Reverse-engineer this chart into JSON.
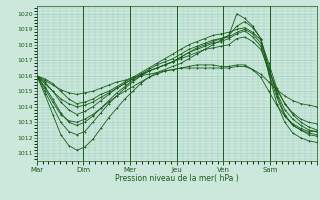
{
  "background_color": "#cce8dd",
  "grid_color": "#99ccbb",
  "line_color": "#1a5c1a",
  "ylabel": "Pression niveau de la mer( hPa )",
  "xlabels": [
    "Mar",
    "Dim",
    "Mer",
    "Jeu",
    "Ven",
    "Sam"
  ],
  "ylim": [
    1010.5,
    1020.5
  ],
  "yticks": [
    1011,
    1012,
    1013,
    1014,
    1015,
    1016,
    1017,
    1018,
    1019,
    1020
  ],
  "num_days": 6,
  "n_points": 36,
  "series": [
    [
      1016.0,
      1015.8,
      1015.5,
      1015.0,
      1014.5,
      1014.2,
      1014.3,
      1014.5,
      1014.8,
      1015.0,
      1015.3,
      1015.6,
      1015.9,
      1016.2,
      1016.5,
      1016.8,
      1017.1,
      1017.4,
      1017.7,
      1018.0,
      1018.2,
      1018.4,
      1018.6,
      1018.7,
      1018.8,
      1019.0,
      1019.1,
      1018.8,
      1018.3,
      1016.8,
      1015.2,
      1014.2,
      1013.5,
      1013.0,
      1012.7,
      1012.5
    ],
    [
      1016.0,
      1015.6,
      1015.0,
      1014.3,
      1013.8,
      1013.5,
      1013.7,
      1014.0,
      1014.4,
      1014.8,
      1015.2,
      1015.5,
      1015.8,
      1016.1,
      1016.4,
      1016.7,
      1016.9,
      1017.1,
      1017.4,
      1017.7,
      1017.9,
      1018.1,
      1018.3,
      1018.4,
      1018.5,
      1018.8,
      1019.0,
      1018.7,
      1018.1,
      1016.5,
      1014.9,
      1013.8,
      1013.2,
      1012.8,
      1012.5,
      1012.4
    ],
    [
      1016.0,
      1015.3,
      1014.5,
      1013.6,
      1013.0,
      1012.8,
      1013.0,
      1013.4,
      1013.9,
      1014.4,
      1014.9,
      1015.3,
      1015.7,
      1016.0,
      1016.3,
      1016.5,
      1016.7,
      1016.9,
      1017.2,
      1017.5,
      1017.7,
      1017.9,
      1018.1,
      1018.2,
      1018.4,
      1018.7,
      1018.9,
      1018.5,
      1017.9,
      1016.2,
      1014.6,
      1013.4,
      1012.8,
      1012.5,
      1012.3,
      1012.2
    ],
    [
      1016.0,
      1015.0,
      1014.0,
      1013.0,
      1012.4,
      1012.2,
      1012.4,
      1013.0,
      1013.6,
      1014.2,
      1014.7,
      1015.2,
      1015.6,
      1016.0,
      1016.3,
      1016.5,
      1016.7,
      1016.9,
      1017.2,
      1017.5,
      1017.8,
      1018.0,
      1018.2,
      1018.4,
      1018.6,
      1019.2,
      1019.5,
      1019.1,
      1018.4,
      1016.5,
      1014.8,
      1013.5,
      1012.8,
      1012.5,
      1012.2,
      1012.1
    ],
    [
      1016.0,
      1015.5,
      1015.0,
      1014.5,
      1014.2,
      1014.0,
      1014.1,
      1014.3,
      1014.6,
      1014.9,
      1015.2,
      1015.5,
      1015.8,
      1016.1,
      1016.3,
      1016.5,
      1016.7,
      1016.9,
      1017.1,
      1017.3,
      1017.5,
      1017.7,
      1017.8,
      1017.9,
      1018.0,
      1018.4,
      1018.5,
      1018.2,
      1017.7,
      1016.4,
      1015.1,
      1014.2,
      1013.6,
      1013.2,
      1013.0,
      1012.9
    ],
    [
      1016.0,
      1015.7,
      1015.4,
      1015.1,
      1014.9,
      1014.8,
      1014.9,
      1015.0,
      1015.2,
      1015.4,
      1015.6,
      1015.7,
      1015.9,
      1016.0,
      1016.1,
      1016.2,
      1016.3,
      1016.4,
      1016.5,
      1016.5,
      1016.5,
      1016.5,
      1016.5,
      1016.5,
      1016.5,
      1016.6,
      1016.6,
      1016.4,
      1016.1,
      1015.6,
      1015.1,
      1014.7,
      1014.4,
      1014.2,
      1014.1,
      1014.0
    ],
    [
      1016.0,
      1014.8,
      1013.5,
      1012.2,
      1011.5,
      1011.2,
      1011.4,
      1011.9,
      1012.6,
      1013.3,
      1013.9,
      1014.5,
      1015.0,
      1015.5,
      1015.9,
      1016.2,
      1016.4,
      1016.6,
      1016.8,
      1017.1,
      1017.4,
      1017.7,
      1018.0,
      1018.3,
      1018.6,
      1020.0,
      1019.7,
      1019.2,
      1018.4,
      1016.1,
      1014.2,
      1013.0,
      1012.3,
      1012.0,
      1011.8,
      1011.7
    ],
    [
      1016.0,
      1015.2,
      1014.3,
      1013.5,
      1013.1,
      1013.0,
      1013.2,
      1013.5,
      1013.9,
      1014.3,
      1014.7,
      1015.0,
      1015.3,
      1015.6,
      1015.9,
      1016.1,
      1016.3,
      1016.4,
      1016.5,
      1016.6,
      1016.7,
      1016.7,
      1016.7,
      1016.6,
      1016.6,
      1016.7,
      1016.7,
      1016.4,
      1015.9,
      1015.0,
      1014.1,
      1013.4,
      1012.9,
      1012.6,
      1012.4,
      1012.4
    ]
  ]
}
